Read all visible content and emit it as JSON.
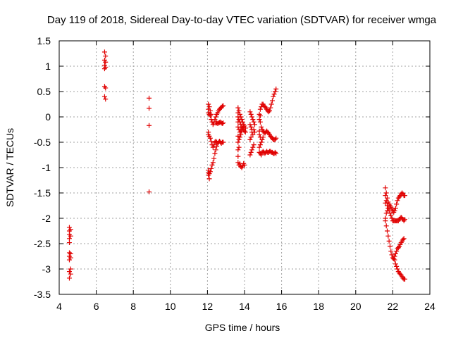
{
  "chart_data": {
    "type": "scatter",
    "title": "Day 119 of 2018, Sidereal Day-to-day VTEC variation (SDTVAR) for receiver wmga",
    "xlabel": "GPS time / hours",
    "ylabel": "SDTVAR / TECUs",
    "xlim": [
      4,
      24
    ],
    "ylim": [
      -3.5,
      1.5
    ],
    "x_ticks": [
      4,
      6,
      8,
      10,
      12,
      14,
      16,
      18,
      20,
      22,
      24
    ],
    "y_ticks": [
      1.5,
      1,
      0.5,
      0,
      -0.5,
      -1,
      -1.5,
      -2,
      -2.5,
      -3,
      -3.5
    ],
    "x_tick_labels": [
      "4",
      "6",
      "8",
      "10",
      "12",
      "14",
      "16",
      "18",
      "20",
      "22",
      "24"
    ],
    "y_tick_labels": [
      "1.5",
      "1",
      "0.5",
      "0",
      "-0.5",
      "-1",
      "-1.5",
      "-2",
      "-2.5",
      "-3",
      "-3.5"
    ],
    "grid": true,
    "marker": "+",
    "marker_color": "#e00000",
    "series": [
      {
        "name": "SDTVAR",
        "points": [
          [
            4.55,
            -2.18
          ],
          [
            4.55,
            -2.25
          ],
          [
            4.55,
            -2.32
          ],
          [
            4.55,
            -2.4
          ],
          [
            4.55,
            -2.48
          ],
          [
            4.55,
            -2.68
          ],
          [
            4.55,
            -2.75
          ],
          [
            4.55,
            -2.82
          ],
          [
            4.55,
            -3.05
          ],
          [
            4.55,
            -3.18
          ],
          [
            4.62,
            -2.22
          ],
          [
            4.62,
            -2.35
          ],
          [
            4.62,
            -2.7
          ],
          [
            4.62,
            -2.78
          ],
          [
            4.62,
            -3.0
          ],
          [
            4.62,
            -3.1
          ],
          [
            6.45,
            1.28
          ],
          [
            6.45,
            1.12
          ],
          [
            6.45,
            1.02
          ],
          [
            6.45,
            0.95
          ],
          [
            6.45,
            0.6
          ],
          [
            6.45,
            0.4
          ],
          [
            6.5,
            1.2
          ],
          [
            6.5,
            1.08
          ],
          [
            6.5,
            0.98
          ],
          [
            6.5,
            0.57
          ],
          [
            6.5,
            0.35
          ],
          [
            8.85,
            0.37
          ],
          [
            8.85,
            0.17
          ],
          [
            8.85,
            -0.17
          ],
          [
            8.85,
            -1.48
          ],
          [
            12.05,
            0.25
          ],
          [
            12.05,
            0.15
          ],
          [
            12.05,
            0.08
          ],
          [
            12.05,
            -0.3
          ],
          [
            12.05,
            -0.35
          ],
          [
            12.05,
            -1.05
          ],
          [
            12.05,
            -1.1
          ],
          [
            12.05,
            -1.15
          ],
          [
            12.1,
            0.2
          ],
          [
            12.1,
            0.05
          ],
          [
            12.1,
            -0.38
          ],
          [
            12.1,
            -1.12
          ],
          [
            12.1,
            -1.22
          ],
          [
            12.15,
            0.12
          ],
          [
            12.15,
            0.02
          ],
          [
            12.15,
            -0.42
          ],
          [
            12.15,
            -1.08
          ],
          [
            12.2,
            0.05
          ],
          [
            12.2,
            -0.05
          ],
          [
            12.2,
            -0.48
          ],
          [
            12.2,
            -1.02
          ],
          [
            12.25,
            -0.1
          ],
          [
            12.25,
            -0.55
          ],
          [
            12.25,
            -0.95
          ],
          [
            12.3,
            -0.15
          ],
          [
            12.3,
            -0.6
          ],
          [
            12.3,
            -0.9
          ],
          [
            12.35,
            -0.12
          ],
          [
            12.35,
            -0.55
          ],
          [
            12.35,
            -0.82
          ],
          [
            12.4,
            -0.05
          ],
          [
            12.4,
            -0.5
          ],
          [
            12.4,
            -0.72
          ],
          [
            12.45,
            0.0
          ],
          [
            12.45,
            -0.12
          ],
          [
            12.45,
            -0.48
          ],
          [
            12.45,
            -0.65
          ],
          [
            12.5,
            0.05
          ],
          [
            12.5,
            -0.12
          ],
          [
            12.5,
            -0.5
          ],
          [
            12.5,
            -0.58
          ],
          [
            12.55,
            0.08
          ],
          [
            12.55,
            -0.13
          ],
          [
            12.55,
            -0.52
          ],
          [
            12.6,
            0.12
          ],
          [
            12.6,
            -0.12
          ],
          [
            12.6,
            -0.5
          ],
          [
            12.65,
            0.15
          ],
          [
            12.65,
            -0.11
          ],
          [
            12.65,
            -0.48
          ],
          [
            12.7,
            0.17
          ],
          [
            12.7,
            -0.1
          ],
          [
            12.7,
            -0.5
          ],
          [
            12.75,
            0.19
          ],
          [
            12.75,
            -0.12
          ],
          [
            12.75,
            -0.52
          ],
          [
            12.8,
            0.21
          ],
          [
            12.8,
            -0.13
          ],
          [
            12.8,
            -0.5
          ],
          [
            12.85,
            0.22
          ],
          [
            12.85,
            -0.12
          ],
          [
            12.85,
            -0.5
          ],
          [
            13.65,
            0.18
          ],
          [
            13.65,
            0.08
          ],
          [
            13.65,
            0.0
          ],
          [
            13.65,
            -0.1
          ],
          [
            13.65,
            -0.2
          ],
          [
            13.65,
            -0.38
          ],
          [
            13.65,
            -0.5
          ],
          [
            13.65,
            -0.65
          ],
          [
            13.65,
            -0.78
          ],
          [
            13.65,
            -0.9
          ],
          [
            13.7,
            0.12
          ],
          [
            13.7,
            -0.05
          ],
          [
            13.7,
            -0.25
          ],
          [
            13.7,
            -0.45
          ],
          [
            13.7,
            -0.6
          ],
          [
            13.7,
            -0.95
          ],
          [
            13.75,
            0.05
          ],
          [
            13.75,
            -0.1
          ],
          [
            13.75,
            -0.3
          ],
          [
            13.75,
            -0.4
          ],
          [
            13.75,
            -0.92
          ],
          [
            13.8,
            0.0
          ],
          [
            13.8,
            -0.15
          ],
          [
            13.8,
            -0.25
          ],
          [
            13.8,
            -0.35
          ],
          [
            13.8,
            -0.98
          ],
          [
            13.85,
            -0.05
          ],
          [
            13.85,
            -0.2
          ],
          [
            13.85,
            -0.28
          ],
          [
            13.85,
            -1.0
          ],
          [
            13.9,
            -0.1
          ],
          [
            13.9,
            -0.22
          ],
          [
            13.9,
            -0.97
          ],
          [
            13.95,
            -0.15
          ],
          [
            13.95,
            -0.25
          ],
          [
            13.95,
            -0.92
          ],
          [
            14.0,
            -0.18
          ],
          [
            14.0,
            -0.28
          ],
          [
            14.0,
            -0.95
          ],
          [
            14.05,
            -0.22
          ],
          [
            14.05,
            -0.3
          ],
          [
            14.3,
            0.1
          ],
          [
            14.3,
            -0.15
          ],
          [
            14.3,
            -0.45
          ],
          [
            14.3,
            -0.75
          ],
          [
            14.35,
            0.05
          ],
          [
            14.35,
            -0.2
          ],
          [
            14.35,
            -0.4
          ],
          [
            14.35,
            -0.7
          ],
          [
            14.4,
            0.0
          ],
          [
            14.4,
            -0.25
          ],
          [
            14.4,
            -0.3
          ],
          [
            14.4,
            -0.65
          ],
          [
            14.45,
            -0.05
          ],
          [
            14.45,
            -0.35
          ],
          [
            14.45,
            -0.6
          ],
          [
            14.5,
            -0.1
          ],
          [
            14.5,
            -0.25
          ],
          [
            14.5,
            -0.55
          ],
          [
            14.55,
            -0.15
          ],
          [
            14.55,
            -0.3
          ],
          [
            14.8,
            0.05
          ],
          [
            14.8,
            -0.05
          ],
          [
            14.8,
            -0.28
          ],
          [
            14.8,
            -0.35
          ],
          [
            14.8,
            -0.6
          ],
          [
            14.8,
            -0.7
          ],
          [
            14.85,
            0.15
          ],
          [
            14.85,
            0.02
          ],
          [
            14.85,
            -0.1
          ],
          [
            14.85,
            -0.4
          ],
          [
            14.85,
            -0.55
          ],
          [
            14.85,
            -0.72
          ],
          [
            14.9,
            0.2
          ],
          [
            14.9,
            -0.2
          ],
          [
            14.9,
            -0.5
          ],
          [
            14.9,
            -0.75
          ],
          [
            14.95,
            0.25
          ],
          [
            14.95,
            -0.25
          ],
          [
            14.95,
            -0.45
          ],
          [
            14.95,
            -0.7
          ],
          [
            15.0,
            0.25
          ],
          [
            15.0,
            -0.28
          ],
          [
            15.0,
            -0.4
          ],
          [
            15.0,
            -0.68
          ],
          [
            15.05,
            0.22
          ],
          [
            15.05,
            -0.3
          ],
          [
            15.05,
            -0.7
          ],
          [
            15.1,
            0.2
          ],
          [
            15.1,
            -0.32
          ],
          [
            15.1,
            -0.72
          ],
          [
            15.15,
            0.18
          ],
          [
            15.15,
            -0.3
          ],
          [
            15.15,
            -0.7
          ],
          [
            15.2,
            0.15
          ],
          [
            15.2,
            -0.28
          ],
          [
            15.2,
            -0.68
          ],
          [
            15.25,
            0.12
          ],
          [
            15.25,
            -0.3
          ],
          [
            15.25,
            -0.7
          ],
          [
            15.3,
            0.1
          ],
          [
            15.3,
            -0.32
          ],
          [
            15.3,
            -0.7
          ],
          [
            15.35,
            0.12
          ],
          [
            15.35,
            -0.35
          ],
          [
            15.35,
            -0.68
          ],
          [
            15.4,
            0.18
          ],
          [
            15.4,
            -0.38
          ],
          [
            15.4,
            -0.68
          ],
          [
            15.45,
            0.25
          ],
          [
            15.45,
            -0.4
          ],
          [
            15.45,
            -0.7
          ],
          [
            15.5,
            0.32
          ],
          [
            15.5,
            -0.42
          ],
          [
            15.5,
            -0.7
          ],
          [
            15.55,
            0.4
          ],
          [
            15.55,
            -0.45
          ],
          [
            15.55,
            -0.72
          ],
          [
            15.6,
            0.45
          ],
          [
            15.6,
            -0.45
          ],
          [
            15.6,
            -0.72
          ],
          [
            15.65,
            0.5
          ],
          [
            15.65,
            -0.45
          ],
          [
            15.65,
            -0.7
          ],
          [
            15.7,
            0.55
          ],
          [
            15.7,
            -0.42
          ],
          [
            15.7,
            -0.72
          ],
          [
            21.6,
            -1.4
          ],
          [
            21.6,
            -1.55
          ],
          [
            21.6,
            -1.7
          ],
          [
            21.6,
            -2.0
          ],
          [
            21.6,
            -2.05
          ],
          [
            21.65,
            -1.5
          ],
          [
            21.65,
            -1.65
          ],
          [
            21.65,
            -1.9
          ],
          [
            21.65,
            -2.15
          ],
          [
            21.7,
            -1.6
          ],
          [
            21.7,
            -1.75
          ],
          [
            21.7,
            -1.85
          ],
          [
            21.7,
            -2.25
          ],
          [
            21.75,
            -1.68
          ],
          [
            21.75,
            -1.8
          ],
          [
            21.75,
            -2.35
          ],
          [
            21.8,
            -1.72
          ],
          [
            21.8,
            -1.85
          ],
          [
            21.8,
            -2.45
          ],
          [
            21.85,
            -1.75
          ],
          [
            21.85,
            -1.9
          ],
          [
            21.85,
            -2.55
          ],
          [
            21.9,
            -1.78
          ],
          [
            21.9,
            -1.95
          ],
          [
            21.9,
            -2.65
          ],
          [
            21.95,
            -1.82
          ],
          [
            21.95,
            -2.0
          ],
          [
            21.95,
            -2.72
          ],
          [
            22.0,
            -1.85
          ],
          [
            22.0,
            -2.05
          ],
          [
            22.0,
            -2.78
          ],
          [
            22.05,
            -1.88
          ],
          [
            22.05,
            -2.05
          ],
          [
            22.05,
            -2.8
          ],
          [
            22.1,
            -1.85
          ],
          [
            22.1,
            -2.05
          ],
          [
            22.1,
            -2.75
          ],
          [
            22.1,
            -2.82
          ],
          [
            22.15,
            -1.8
          ],
          [
            22.15,
            -2.05
          ],
          [
            22.15,
            -2.7
          ],
          [
            22.15,
            -2.9
          ],
          [
            22.2,
            -1.72
          ],
          [
            22.2,
            -2.05
          ],
          [
            22.2,
            -2.65
          ],
          [
            22.2,
            -2.95
          ],
          [
            22.25,
            -1.65
          ],
          [
            22.25,
            -2.05
          ],
          [
            22.25,
            -2.6
          ],
          [
            22.25,
            -3.0
          ],
          [
            22.3,
            -1.6
          ],
          [
            22.3,
            -2.05
          ],
          [
            22.3,
            -2.58
          ],
          [
            22.3,
            -3.05
          ],
          [
            22.35,
            -1.58
          ],
          [
            22.35,
            -2.02
          ],
          [
            22.35,
            -2.55
          ],
          [
            22.35,
            -3.08
          ],
          [
            22.4,
            -1.55
          ],
          [
            22.4,
            -2.0
          ],
          [
            22.4,
            -2.52
          ],
          [
            22.4,
            -3.1
          ],
          [
            22.45,
            -1.52
          ],
          [
            22.45,
            -1.98
          ],
          [
            22.45,
            -2.48
          ],
          [
            22.45,
            -3.12
          ],
          [
            22.5,
            -1.5
          ],
          [
            22.5,
            -2.0
          ],
          [
            22.5,
            -2.45
          ],
          [
            22.5,
            -3.15
          ],
          [
            22.55,
            -1.52
          ],
          [
            22.55,
            -2.02
          ],
          [
            22.55,
            -2.42
          ],
          [
            22.55,
            -3.18
          ],
          [
            22.6,
            -1.55
          ],
          [
            22.6,
            -2.05
          ],
          [
            22.6,
            -2.4
          ],
          [
            22.6,
            -3.2
          ],
          [
            22.65,
            -1.55
          ],
          [
            22.65,
            -2.02
          ],
          [
            22.65,
            -3.2
          ]
        ]
      }
    ]
  }
}
